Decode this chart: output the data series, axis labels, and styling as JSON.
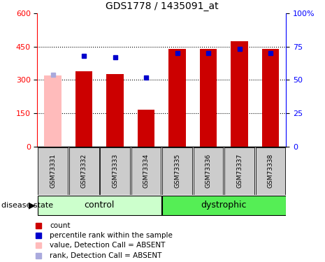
{
  "title": "GDS1778 / 1435091_at",
  "samples": [
    "GSM73331",
    "GSM73332",
    "GSM73333",
    "GSM73334",
    "GSM73335",
    "GSM73336",
    "GSM73337",
    "GSM73338"
  ],
  "count_values": [
    320,
    340,
    325,
    165,
    440,
    440,
    475,
    440
  ],
  "percentile_values": [
    54,
    68,
    67,
    52,
    70,
    70,
    73,
    70
  ],
  "absent_flags": [
    true,
    false,
    false,
    false,
    false,
    false,
    false,
    false
  ],
  "ylim_left": [
    0,
    600
  ],
  "ylim_right": [
    0,
    100
  ],
  "yticks_left": [
    0,
    150,
    300,
    450,
    600
  ],
  "yticks_right": [
    0,
    25,
    50,
    75,
    100
  ],
  "bar_color_normal": "#cc0000",
  "bar_color_absent": "#ffbbbb",
  "dot_color_normal": "#0000cc",
  "dot_color_absent": "#aaaadd",
  "bar_width": 0.55,
  "control_bg": "#ccffcc",
  "dystrophic_bg": "#55ee55",
  "label_box_bg": "#cccccc",
  "legend_items": [
    {
      "label": "count",
      "color": "#cc0000"
    },
    {
      "label": "percentile rank within the sample",
      "color": "#0000cc"
    },
    {
      "label": "value, Detection Call = ABSENT",
      "color": "#ffbbbb"
    },
    {
      "label": "rank, Detection Call = ABSENT",
      "color": "#aaaadd"
    }
  ]
}
